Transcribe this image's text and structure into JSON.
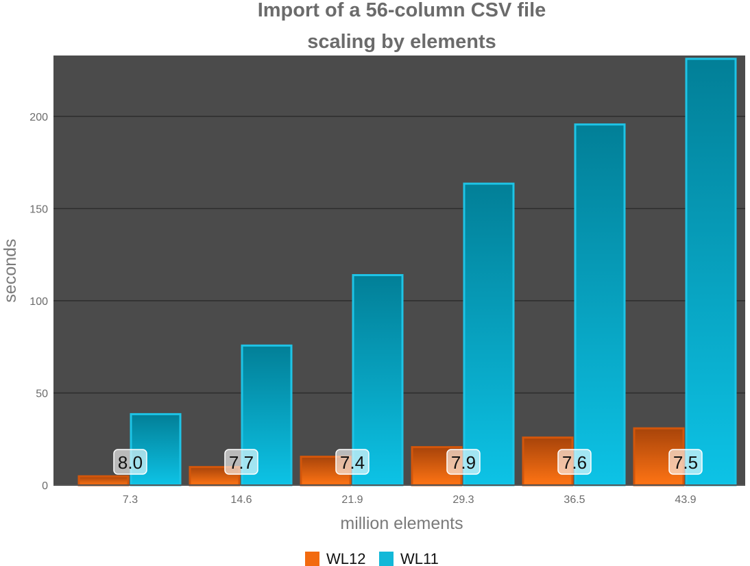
{
  "chart_data": {
    "type": "bar",
    "title": "Import of a 56-column CSV file",
    "subtitle": "scaling by elements",
    "xlabel": "million elements",
    "ylabel": "seconds",
    "categories": [
      "7.3",
      "14.6",
      "21.9",
      "29.3",
      "36.5",
      "43.9"
    ],
    "series": [
      {
        "name": "WL12",
        "color": "#f26a0f",
        "values": [
          4.8,
          9.8,
          15.4,
          20.6,
          25.8,
          30.8
        ]
      },
      {
        "name": "WL11",
        "color": "#12b8d8",
        "values": [
          38.5,
          75.7,
          113.9,
          163.5,
          195.6,
          231.2
        ]
      }
    ],
    "ratio_labels": [
      "8.0",
      "7.7",
      "7.4",
      "7.9",
      "7.6",
      "7.5"
    ],
    "ylim": [
      0,
      233
    ],
    "yticks": [
      0,
      50,
      100,
      150,
      200
    ],
    "grid": true,
    "legend_position": "bottom-center",
    "plot_background": "#4b4b4b"
  }
}
